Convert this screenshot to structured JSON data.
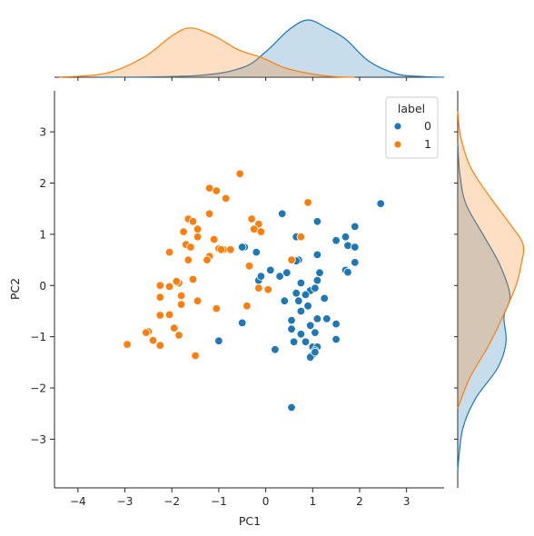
{
  "chart_data": {
    "type": "scatter",
    "subtype": "jointplot-with-kde-marginals",
    "title": "",
    "xlabel": "PC1",
    "ylabel": "PC2",
    "xlim": [
      -4.5,
      3.8
    ],
    "ylim": [
      -3.95,
      3.8
    ],
    "xticks": [
      -4,
      -3,
      -2,
      -1,
      0,
      1,
      2,
      3
    ],
    "yticks": [
      -3,
      -2,
      -1,
      0,
      1,
      2,
      3
    ],
    "grid": false,
    "legend": {
      "title": "label",
      "placement": "top-right",
      "entries": [
        "0",
        "1"
      ]
    },
    "colors": {
      "0": "#1f77b4",
      "1": "#ff7f0e"
    },
    "series": [
      {
        "name": "0",
        "points": [
          [
            2.45,
            1.6
          ],
          [
            0.35,
            1.4
          ],
          [
            1.1,
            1.25
          ],
          [
            1.9,
            1.15
          ],
          [
            0.65,
            0.95
          ],
          [
            1.7,
            0.95
          ],
          [
            1.5,
            0.88
          ],
          [
            1.75,
            0.78
          ],
          [
            1.9,
            0.75
          ],
          [
            -0.45,
            0.75
          ],
          [
            -0.5,
            0.75
          ],
          [
            -0.2,
            0.65
          ],
          [
            1.1,
            0.6
          ],
          [
            0.7,
            0.5
          ],
          [
            1.9,
            0.45
          ],
          [
            0.65,
            0.48
          ],
          [
            -0.15,
            0.1
          ],
          [
            0.1,
            0.3
          ],
          [
            0.45,
            0.25
          ],
          [
            1.15,
            0.25
          ],
          [
            1.7,
            0.3
          ],
          [
            1.75,
            0.26
          ],
          [
            0.3,
            0.18
          ],
          [
            -0.1,
            0.18
          ],
          [
            0.75,
            0.05
          ],
          [
            1.1,
            0.1
          ],
          [
            0.95,
            -0.1
          ],
          [
            1.05,
            -0.05
          ],
          [
            0.65,
            -0.15
          ],
          [
            0.85,
            -0.18
          ],
          [
            0.4,
            -0.3
          ],
          [
            0.7,
            -0.3
          ],
          [
            1.25,
            -0.25
          ],
          [
            0.9,
            -0.4
          ],
          [
            0.75,
            -0.5
          ],
          [
            1.1,
            -0.65
          ],
          [
            1.3,
            -0.65
          ],
          [
            0.55,
            -0.68
          ],
          [
            1.5,
            -0.75
          ],
          [
            -0.5,
            -0.73
          ],
          [
            0.95,
            -0.78
          ],
          [
            0.55,
            -0.85
          ],
          [
            0.75,
            -0.95
          ],
          [
            1.05,
            -0.92
          ],
          [
            0.6,
            -1.1
          ],
          [
            0.85,
            -1.1
          ],
          [
            1.5,
            -1.05
          ],
          [
            1.0,
            -1.2
          ],
          [
            1.1,
            -1.2
          ],
          [
            1.05,
            -1.27
          ],
          [
            0.2,
            -1.25
          ],
          [
            1.0,
            -1.35
          ],
          [
            0.95,
            -1.4
          ],
          [
            1.05,
            -1.3
          ],
          [
            -1.0,
            -1.08
          ],
          [
            0.55,
            -2.38
          ]
        ]
      },
      {
        "name": "1",
        "points": [
          [
            -0.55,
            2.18
          ],
          [
            -1.2,
            1.9
          ],
          [
            -1.05,
            1.85
          ],
          [
            -0.85,
            1.7
          ],
          [
            0.9,
            1.62
          ],
          [
            -1.2,
            1.4
          ],
          [
            -1.65,
            1.3
          ],
          [
            -1.55,
            1.25
          ],
          [
            -0.3,
            1.3
          ],
          [
            -0.15,
            1.2
          ],
          [
            -1.45,
            1.1
          ],
          [
            -1.75,
            1.05
          ],
          [
            -1.45,
            0.95
          ],
          [
            0.75,
            0.95
          ],
          [
            -1.1,
            0.9
          ],
          [
            -0.25,
            1.1
          ],
          [
            -0.1,
            1.05
          ],
          [
            -1.0,
            0.72
          ],
          [
            -0.9,
            0.7
          ],
          [
            -0.95,
            0.7
          ],
          [
            -0.75,
            0.7
          ],
          [
            -1.7,
            0.8
          ],
          [
            -1.6,
            0.75
          ],
          [
            -2.05,
            0.65
          ],
          [
            -1.2,
            0.57
          ],
          [
            -1.25,
            0.5
          ],
          [
            -1.65,
            0.5
          ],
          [
            0.55,
            0.5
          ],
          [
            -0.35,
            0.38
          ],
          [
            -1.85,
            0.05
          ],
          [
            -2.05,
            -0.02
          ],
          [
            -2.25,
            0.0
          ],
          [
            -1.9,
            0.08
          ],
          [
            -1.55,
            0.12
          ],
          [
            -0.15,
            -0.05
          ],
          [
            0.05,
            -0.08
          ],
          [
            -1.8,
            -0.2
          ],
          [
            -2.25,
            -0.23
          ],
          [
            -1.45,
            -0.3
          ],
          [
            -1.8,
            -0.37
          ],
          [
            -0.4,
            -0.4
          ],
          [
            -1.05,
            -0.45
          ],
          [
            -2.25,
            -0.58
          ],
          [
            -2.05,
            -0.57
          ],
          [
            -1.95,
            -0.83
          ],
          [
            -2.5,
            -0.9
          ],
          [
            -2.55,
            -0.92
          ],
          [
            -1.85,
            -0.97
          ],
          [
            -2.4,
            -1.07
          ],
          [
            -2.95,
            -1.15
          ],
          [
            -2.25,
            -1.17
          ],
          [
            -1.5,
            -1.37
          ]
        ]
      }
    ],
    "marginal_x": {
      "type": "kde",
      "series": [
        {
          "name": "0",
          "x": [
            -3.6,
            -1.5,
            -0.5,
            0.0,
            0.5,
            0.9,
            1.3,
            1.7,
            2.2,
            2.8,
            3.3,
            3.8
          ],
          "density": [
            0.0,
            0.02,
            0.12,
            0.32,
            0.6,
            0.72,
            0.62,
            0.48,
            0.2,
            0.04,
            0.01,
            0.0
          ]
        },
        {
          "name": "1",
          "x": [
            -4.4,
            -3.4,
            -2.6,
            -2.0,
            -1.6,
            -1.1,
            -0.6,
            -0.1,
            0.4,
            0.9,
            1.4,
            1.9
          ],
          "density": [
            0.0,
            0.05,
            0.25,
            0.52,
            0.62,
            0.52,
            0.35,
            0.25,
            0.12,
            0.05,
            0.01,
            0.0
          ]
        }
      ]
    },
    "marginal_y": {
      "type": "kde",
      "series": [
        {
          "name": "0",
          "y": [
            -3.6,
            -2.8,
            -2.2,
            -1.6,
            -1.1,
            -0.6,
            -0.2,
            0.4,
            1.0,
            1.6,
            2.2,
            2.8
          ],
          "density": [
            0.0,
            0.05,
            0.18,
            0.4,
            0.48,
            0.46,
            0.52,
            0.42,
            0.25,
            0.08,
            0.02,
            0.0
          ]
        },
        {
          "name": "1",
          "y": [
            -2.4,
            -1.8,
            -1.2,
            -0.6,
            0.0,
            0.4,
            0.8,
            1.2,
            1.7,
            2.3,
            2.9,
            3.4
          ],
          "density": [
            0.0,
            0.12,
            0.3,
            0.45,
            0.58,
            0.63,
            0.65,
            0.52,
            0.33,
            0.13,
            0.03,
            0.0
          ]
        }
      ]
    }
  }
}
